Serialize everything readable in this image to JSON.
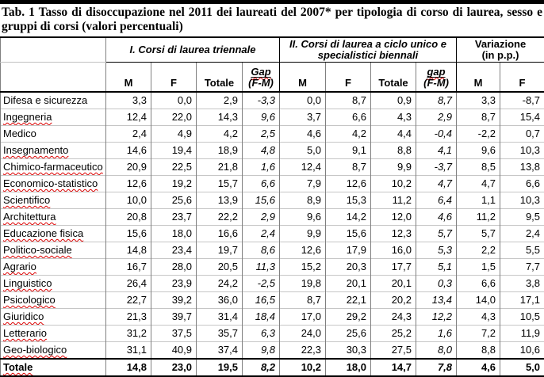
{
  "title": {
    "line1": "Tab. 1 Tasso di disoccupazione nel 2011 dei laureati del 2007*  per tipologia di corso di laurea, sesso e",
    "line2": "gruppi di corsi (valori percentuali)"
  },
  "colors": {
    "top_bar": "#000000",
    "grid_vertical": "#808080",
    "grid_horizontal_light": "#c6c6c6",
    "header_rule": "#000000",
    "spellcheck_red": "#dd0000",
    "text": "#000000",
    "background": "#ffffff"
  },
  "table": {
    "groups": [
      {
        "lines": [
          "I. Corsi di laurea triennale",
          ""
        ]
      },
      {
        "lines": [
          "II. Corsi di laurea a ciclo unico e",
          "specialistici biennali"
        ]
      },
      {
        "lines": [
          "Variazione",
          "(in p.p.)"
        ]
      }
    ],
    "subheaders": {
      "m": "M",
      "f": "F",
      "totale": "Totale",
      "gap_capital": "Gap",
      "gap_lower": "gap",
      "gap_paren": "(F-M)"
    },
    "column_keys": [
      "tri-m",
      "tri-f",
      "tri-totale",
      "tri-gap",
      "cu-m",
      "cu-f",
      "cu-totale",
      "cu-gap",
      "var-m",
      "var-f"
    ],
    "rows": [
      {
        "label": "Difesa e sicurezza",
        "spellcheck_underline": false,
        "values": [
          "3,3",
          "0,0",
          "2,9",
          "-3,3",
          "0,0",
          "8,7",
          "0,9",
          "8,7",
          "3,3",
          "-8,7"
        ]
      },
      {
        "label": "Ingegneria",
        "spellcheck_underline": true,
        "values": [
          "12,4",
          "22,0",
          "14,3",
          "9,6",
          "3,7",
          "6,6",
          "4,3",
          "2,9",
          "8,7",
          "15,4"
        ]
      },
      {
        "label": "Medico",
        "spellcheck_underline": false,
        "values": [
          "2,4",
          "4,9",
          "4,2",
          "2,5",
          "4,6",
          "4,2",
          "4,4",
          "-0,4",
          "-2,2",
          "0,7"
        ]
      },
      {
        "label": "Insegnamento",
        "spellcheck_underline": true,
        "values": [
          "14,6",
          "19,4",
          "18,9",
          "4,8",
          "5,0",
          "9,1",
          "8,8",
          "4,1",
          "9,6",
          "10,3"
        ]
      },
      {
        "label": "Chimico-farmaceutico",
        "spellcheck_underline": true,
        "values": [
          "20,9",
          "22,5",
          "21,8",
          "1,6",
          "12,4",
          "8,7",
          "9,9",
          "-3,7",
          "8,5",
          "13,8"
        ]
      },
      {
        "label": "Economico-statistico",
        "spellcheck_underline": true,
        "values": [
          "12,6",
          "19,2",
          "15,7",
          "6,6",
          "7,9",
          "12,6",
          "10,2",
          "4,7",
          "4,7",
          "6,6"
        ]
      },
      {
        "label": "Scientifico",
        "spellcheck_underline": true,
        "values": [
          "10,0",
          "25,6",
          "13,9",
          "15,6",
          "8,9",
          "15,3",
          "11,2",
          "6,4",
          "1,1",
          "10,3"
        ]
      },
      {
        "label": "Architettura",
        "spellcheck_underline": true,
        "values": [
          "20,8",
          "23,7",
          "22,2",
          "2,9",
          "9,6",
          "14,2",
          "12,0",
          "4,6",
          "11,2",
          "9,5"
        ]
      },
      {
        "label": "Educazione fisica",
        "spellcheck_underline": true,
        "values": [
          "15,6",
          "18,0",
          "16,6",
          "2,4",
          "9,9",
          "15,6",
          "12,3",
          "5,7",
          "5,7",
          "2,4"
        ]
      },
      {
        "label": "Politico-sociale",
        "spellcheck_underline": true,
        "values": [
          "14,8",
          "23,4",
          "19,7",
          "8,6",
          "12,6",
          "17,9",
          "16,0",
          "5,3",
          "2,2",
          "5,5"
        ]
      },
      {
        "label": "Agrario",
        "spellcheck_underline": true,
        "values": [
          "16,7",
          "28,0",
          "20,5",
          "11,3",
          "15,2",
          "20,3",
          "17,7",
          "5,1",
          "1,5",
          "7,7"
        ]
      },
      {
        "label": "Linguistico",
        "spellcheck_underline": true,
        "values": [
          "26,4",
          "23,9",
          "24,2",
          "-2,5",
          "19,8",
          "20,1",
          "20,1",
          "0,3",
          "6,6",
          "3,8"
        ]
      },
      {
        "label": "Psicologico",
        "spellcheck_underline": true,
        "values": [
          "22,7",
          "39,2",
          "36,0",
          "16,5",
          "8,7",
          "22,1",
          "20,2",
          "13,4",
          "14,0",
          "17,1"
        ]
      },
      {
        "label": "Giuridico",
        "spellcheck_underline": true,
        "values": [
          "21,3",
          "39,7",
          "31,4",
          "18,4",
          "17,0",
          "29,2",
          "24,3",
          "12,2",
          "4,3",
          "10,5"
        ]
      },
      {
        "label": "Letterario",
        "spellcheck_underline": true,
        "values": [
          "31,2",
          "37,5",
          "35,7",
          "6,3",
          "24,0",
          "25,6",
          "25,2",
          "1,6",
          "7,2",
          "11,9"
        ]
      },
      {
        "label": "Geo-biologico",
        "spellcheck_underline": true,
        "values": [
          "31,1",
          "40,9",
          "37,4",
          "9,8",
          "22,3",
          "30,3",
          "27,5",
          "8,0",
          "8,8",
          "10,6"
        ]
      }
    ],
    "total_row": {
      "label": "Totale",
      "spellcheck_underline": true,
      "values": [
        "14,8",
        "23,0",
        "19,5",
        "8,2",
        "10,2",
        "18,0",
        "14,7",
        "7,8",
        "4,6",
        "5,0"
      ]
    }
  }
}
